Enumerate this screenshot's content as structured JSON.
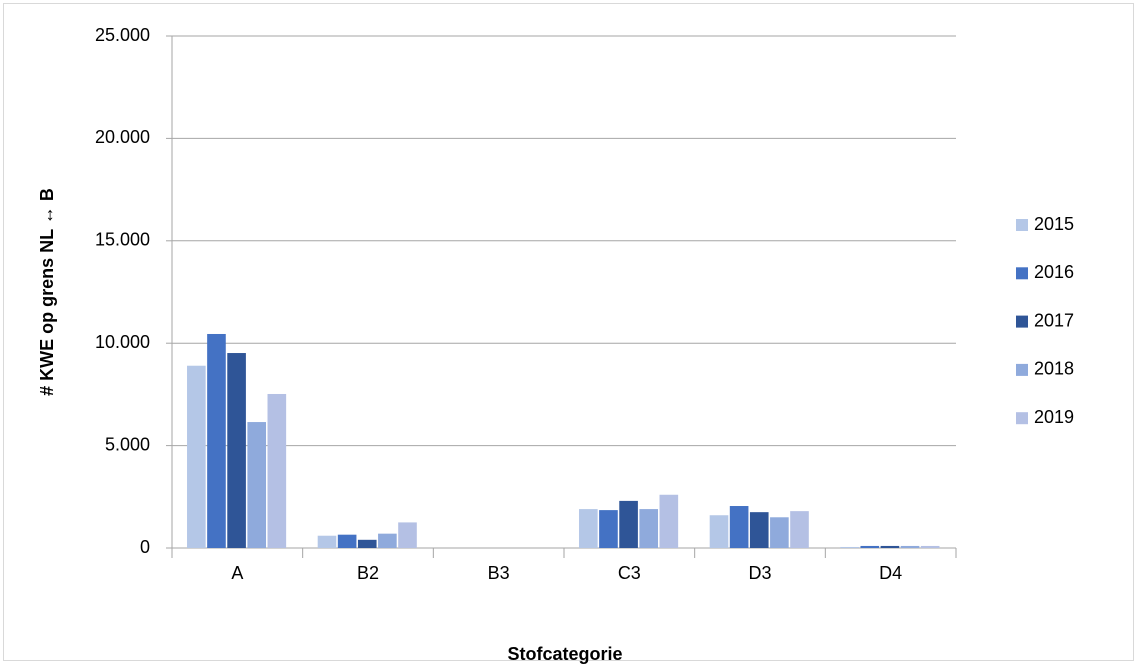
{
  "chart_data": {
    "type": "bar",
    "x_label": "Stofcategorie",
    "y_label": "# KWE op grens NL ↔ B",
    "categories": [
      "A",
      "B2",
      "B3",
      "C3",
      "D3",
      "D4"
    ],
    "series": [
      {
        "name": "2015",
        "color": "#b4c7e7",
        "values": [
          8900,
          600,
          0,
          1900,
          1600,
          50
        ]
      },
      {
        "name": "2016",
        "color": "#4472c4",
        "values": [
          10450,
          650,
          0,
          1850,
          2050,
          100
        ]
      },
      {
        "name": "2017",
        "color": "#2f5597",
        "values": [
          9520,
          400,
          0,
          2300,
          1750,
          100
        ]
      },
      {
        "name": "2018",
        "color": "#8faadc",
        "values": [
          6150,
          700,
          0,
          1900,
          1500,
          100
        ]
      },
      {
        "name": "2019",
        "color": "#b4c0e4",
        "values": [
          7520,
          1250,
          0,
          2600,
          1800,
          100
        ]
      }
    ],
    "ylim": [
      0,
      25000
    ],
    "yticks": [
      0,
      {
        "value": 5000,
        "label": "5.000"
      },
      {
        "value": 10000,
        "label": "10.000"
      },
      {
        "value": 15000,
        "label": "15.000"
      },
      {
        "value": 20000,
        "label": "20.000"
      },
      {
        "value": 25000,
        "label": "25.000"
      }
    ],
    "grid": true,
    "legend": "right"
  }
}
